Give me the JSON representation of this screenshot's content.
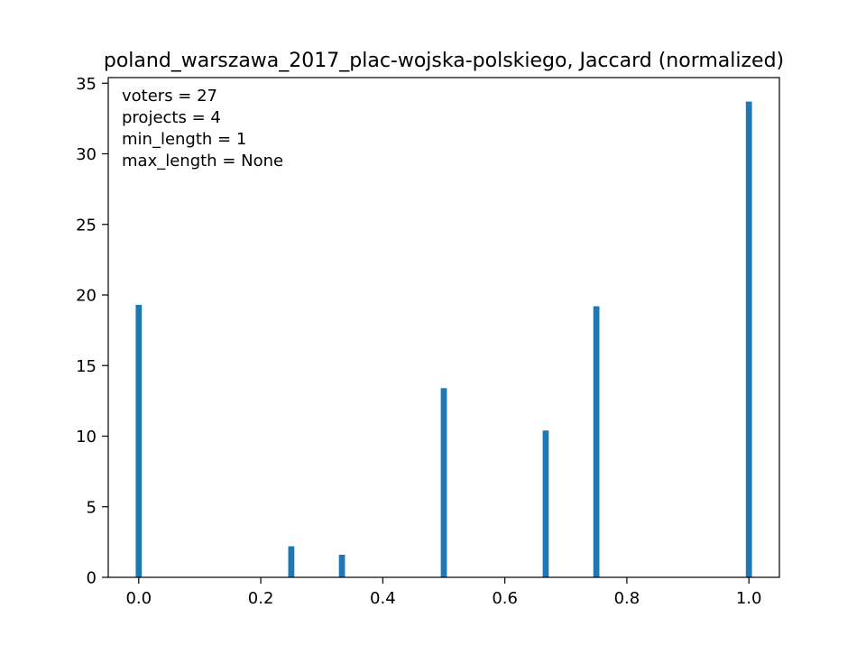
{
  "chart_data": {
    "type": "bar",
    "title": "poland_warszawa_2017_plac-wojska-polskiego, Jaccard (normalized)",
    "xlabel": "",
    "ylabel": "",
    "xlim": [
      -0.05,
      1.05
    ],
    "ylim": [
      0,
      35.4
    ],
    "xticks": [
      0.0,
      0.2,
      0.4,
      0.6,
      0.8,
      1.0
    ],
    "xtick_labels": [
      "0.0",
      "0.2",
      "0.4",
      "0.6",
      "0.8",
      "1.0"
    ],
    "yticks": [
      0,
      5,
      10,
      15,
      20,
      25,
      30,
      35
    ],
    "ytick_labels": [
      "0",
      "5",
      "10",
      "15",
      "20",
      "25",
      "30",
      "35"
    ],
    "bar_width": 0.01,
    "x": [
      0.0,
      0.25,
      0.333,
      0.5,
      0.667,
      0.75,
      1.0
    ],
    "values": [
      19.3,
      2.2,
      1.6,
      13.4,
      10.4,
      19.2,
      33.7
    ],
    "color": "#1f77b4",
    "grid": false,
    "annotations": [
      "voters = 27",
      "projects = 4",
      "min_length = 1",
      "max_length = None"
    ]
  }
}
